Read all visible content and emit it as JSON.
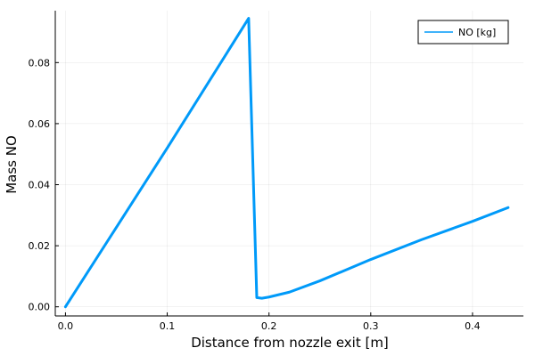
{
  "chart_data": {
    "type": "line",
    "title": "",
    "xlabel": "Distance from nozzle exit [m]",
    "ylabel": "Mass NO",
    "xlim": [
      -0.01,
      0.45
    ],
    "ylim": [
      -0.003,
      0.097
    ],
    "xticks": [
      0.0,
      0.1,
      0.2,
      0.3,
      0.4
    ],
    "xtick_labels": [
      "0.0",
      "0.1",
      "0.2",
      "0.3",
      "0.4"
    ],
    "yticks": [
      0.0,
      0.02,
      0.04,
      0.06,
      0.08
    ],
    "ytick_labels": [
      "0.00",
      "0.02",
      "0.04",
      "0.06",
      "0.08"
    ],
    "grid": true,
    "legend": "top-right",
    "series": [
      {
        "name": "NO [kg]",
        "color": "#009af9",
        "x": [
          0.0,
          0.1,
          0.18,
          0.188,
          0.193,
          0.2,
          0.22,
          0.25,
          0.3,
          0.35,
          0.4,
          0.435
        ],
        "y": [
          0.0,
          0.052,
          0.0945,
          0.003,
          0.0028,
          0.0032,
          0.0048,
          0.0085,
          0.0155,
          0.022,
          0.028,
          0.0325
        ]
      }
    ]
  }
}
